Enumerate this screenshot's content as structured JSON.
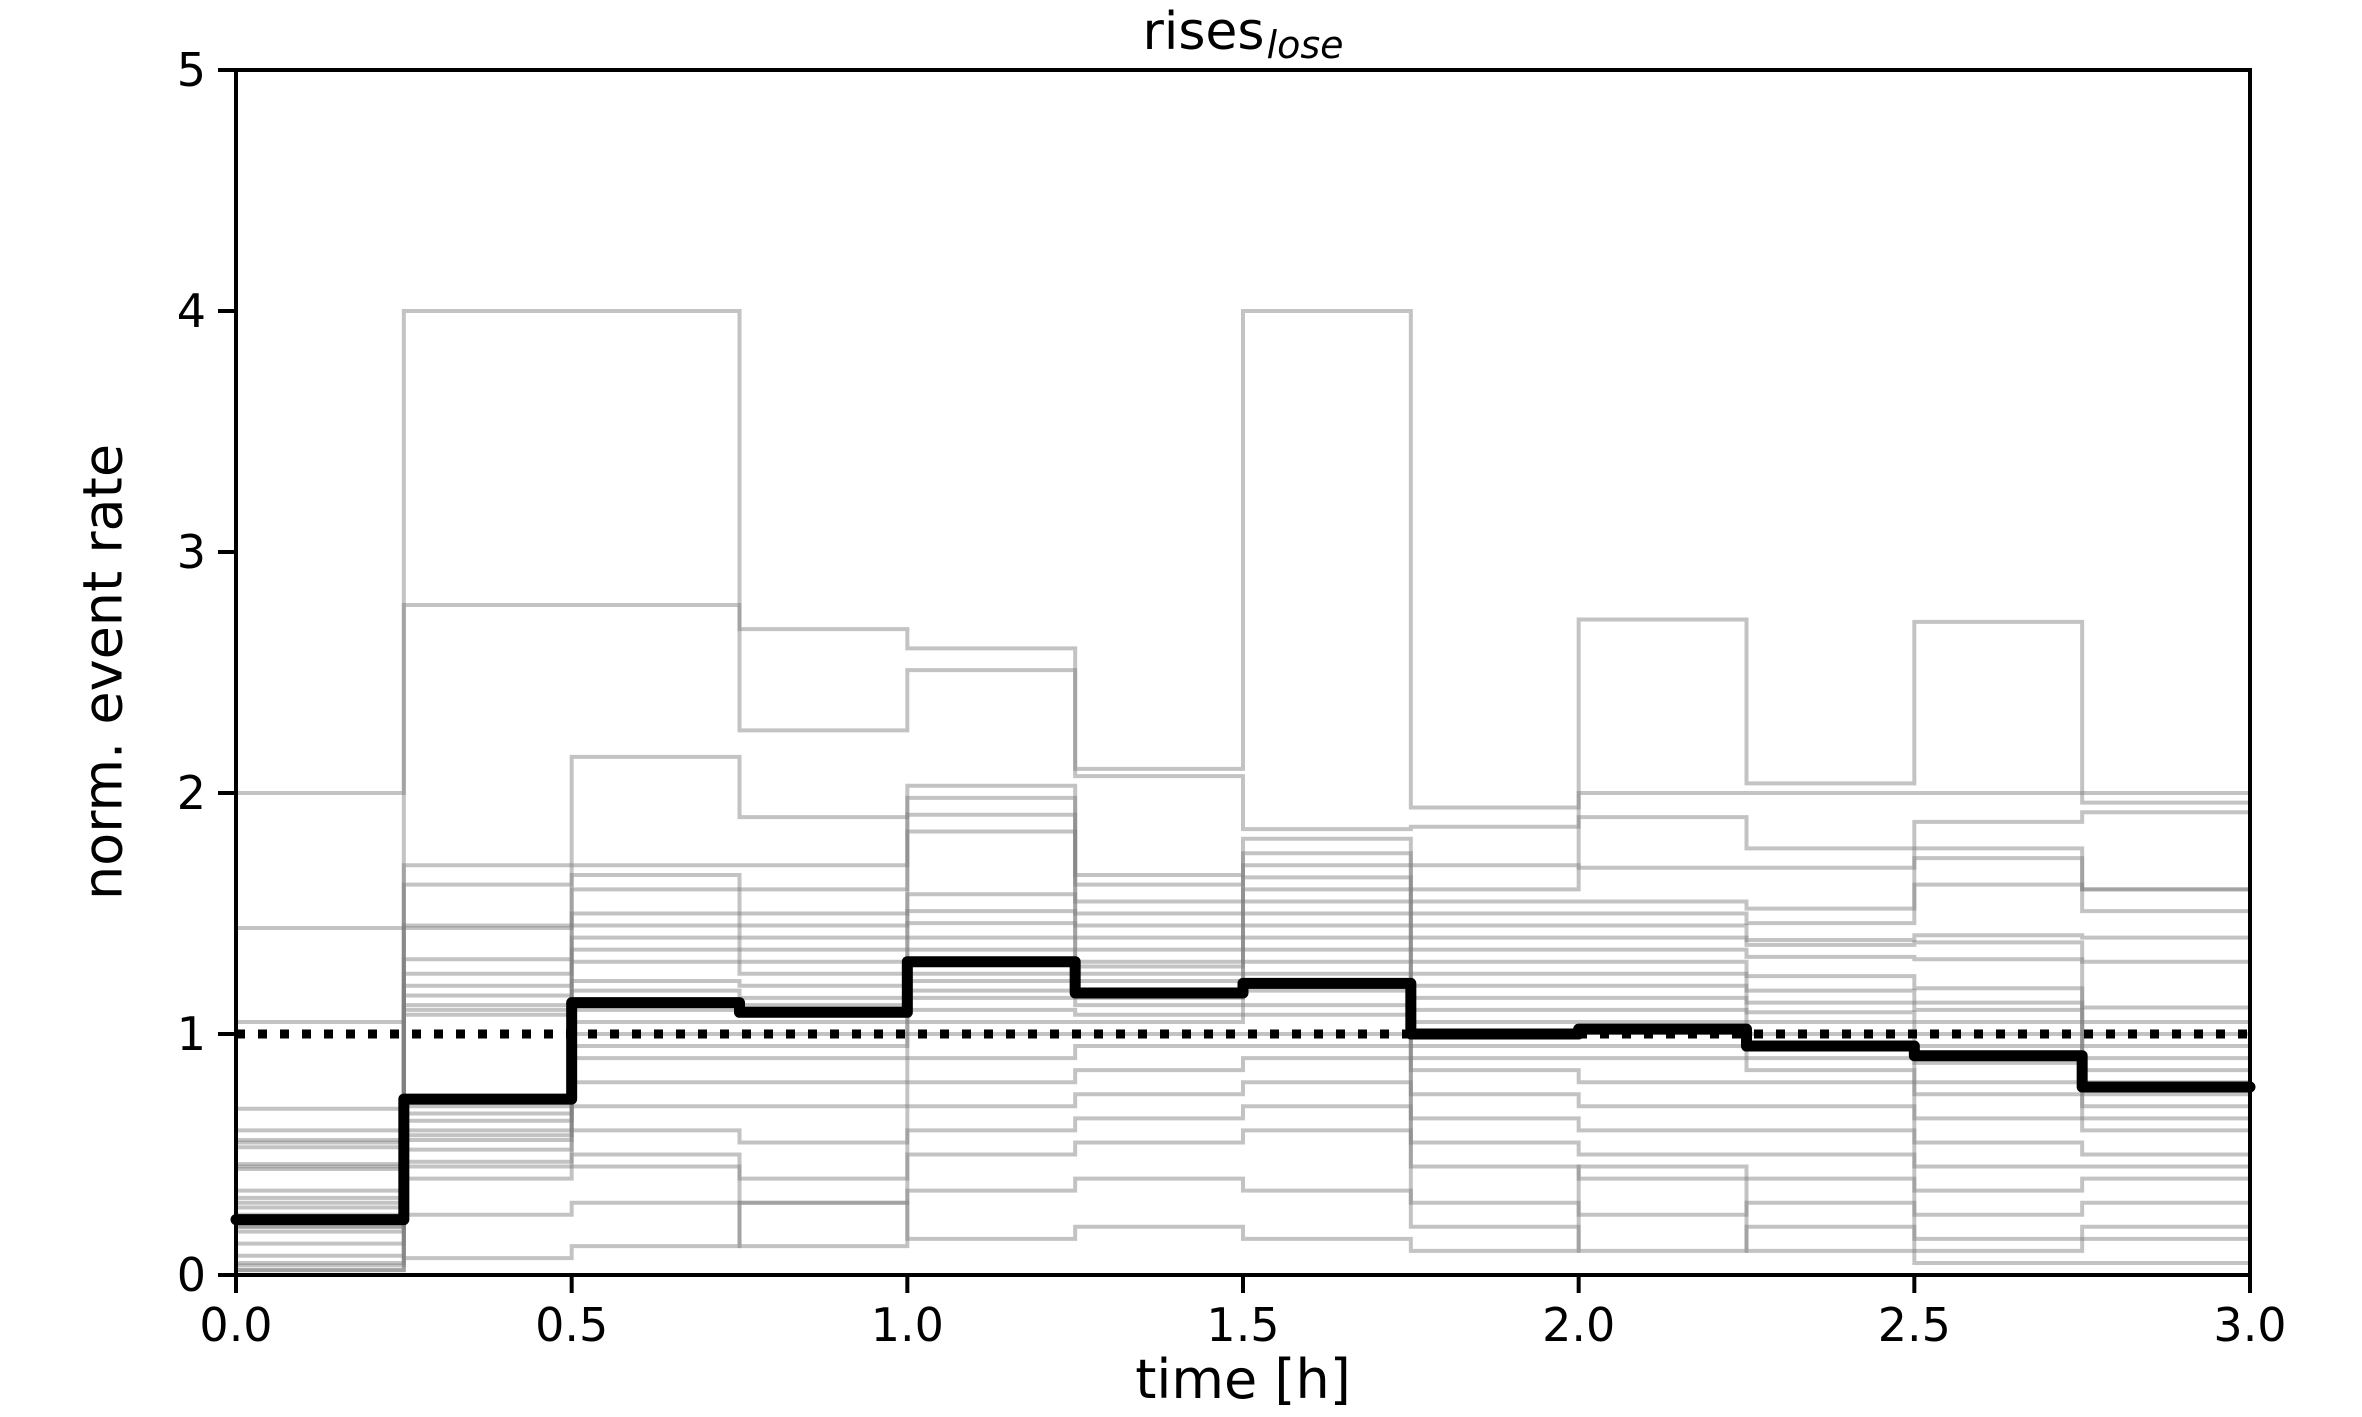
{
  "figure": {
    "title_main": "rises",
    "title_sub": "lose",
    "xlabel": "time [h]",
    "ylabel": "norm. event rate"
  },
  "chart_data": {
    "type": "line",
    "subtype": "step-post",
    "title": "rises_lose",
    "xlabel": "time [h]",
    "ylabel": "norm. event rate",
    "xlim": [
      0.0,
      3.0
    ],
    "ylim": [
      0,
      5
    ],
    "grid": false,
    "legend": null,
    "x_tick_values": [
      0.0,
      0.5,
      1.0,
      1.5,
      2.0,
      2.5,
      3.0
    ],
    "x_tick_labels": [
      "0.0",
      "0.5",
      "1.0",
      "1.5",
      "2.0",
      "2.5",
      "3.0"
    ],
    "y_tick_values": [
      0,
      1,
      2,
      3,
      4,
      5
    ],
    "y_tick_labels": [
      "0",
      "1",
      "2",
      "3",
      "4",
      "5"
    ],
    "bin_width_h": 0.25,
    "bin_edges": [
      0.0,
      0.25,
      0.5,
      0.75,
      1.0,
      1.25,
      1.5,
      1.75,
      2.0,
      2.25,
      2.5,
      2.75,
      3.0
    ],
    "reference_line": {
      "y": 1.0,
      "style": "dotted",
      "color": "#000000"
    },
    "mean_series": {
      "name": "mean-normalized-event-rate",
      "color": "#000000",
      "values": [
        0.23,
        0.73,
        1.13,
        1.09,
        1.3,
        1.17,
        1.21,
        1.0,
        1.02,
        0.95,
        0.91,
        0.78
      ]
    },
    "individual_traces": {
      "name": "per-subject-normalized-event-rate (values estimated from pixels)",
      "color": "#808080",
      "opacity": 0.47,
      "values": [
        [
          2.0,
          4.0,
          4.0,
          2.68,
          2.6,
          2.1,
          4.0,
          1.94,
          2.72,
          2.04,
          2.71,
          1.96
        ],
        [
          1.44,
          2.78,
          2.78,
          2.26,
          2.51,
          2.07,
          1.85,
          1.86,
          2.0,
          2.0,
          2.0,
          2.0
        ],
        [
          0.69,
          1.7,
          2.15,
          1.9,
          2.03,
          1.66,
          1.81,
          1.7,
          1.69,
          1.69,
          1.88,
          1.92
        ],
        [
          0.6,
          1.62,
          1.7,
          1.7,
          1.98,
          1.62,
          1.75,
          1.6,
          1.9,
          1.77,
          1.77,
          1.6
        ],
        [
          0.56,
          1.45,
          1.66,
          1.6,
          1.91,
          1.55,
          1.7,
          1.55,
          1.55,
          1.52,
          1.73,
          1.6
        ],
        [
          0.55,
          1.44,
          1.6,
          1.5,
          1.84,
          1.5,
          1.65,
          1.5,
          1.5,
          1.46,
          1.62,
          1.51
        ],
        [
          0.53,
          1.31,
          1.5,
          1.45,
          1.58,
          1.45,
          1.6,
          1.45,
          1.45,
          1.39,
          1.41,
          1.4
        ],
        [
          0.46,
          1.25,
          1.45,
          1.4,
          1.51,
          1.4,
          1.55,
          1.4,
          1.4,
          1.37,
          1.38,
          1.3
        ],
        [
          0.45,
          1.2,
          1.4,
          1.35,
          1.46,
          1.35,
          1.5,
          1.35,
          1.35,
          1.32,
          1.31,
          1.11
        ],
        [
          0.44,
          1.16,
          1.35,
          1.3,
          1.4,
          1.3,
          1.45,
          1.3,
          1.3,
          1.24,
          1.19,
          1.05
        ],
        [
          1.05,
          1.12,
          1.3,
          1.25,
          1.35,
          1.28,
          1.4,
          1.25,
          1.25,
          1.18,
          1.13,
          1.0
        ],
        [
          0.35,
          1.1,
          1.22,
          1.2,
          1.3,
          1.25,
          1.35,
          1.2,
          1.2,
          1.13,
          1.1,
          0.95
        ],
        [
          0.32,
          1.08,
          1.18,
          1.15,
          1.25,
          1.22,
          1.3,
          1.15,
          1.15,
          1.09,
          1.05,
          0.9
        ],
        [
          0.3,
          0.73,
          1.12,
          1.12,
          1.22,
          1.18,
          1.25,
          1.1,
          1.1,
          1.05,
          1.0,
          0.85
        ],
        [
          0.28,
          0.7,
          1.1,
          1.1,
          1.18,
          1.15,
          1.22,
          1.05,
          1.05,
          1.0,
          0.95,
          0.8
        ],
        [
          0.25,
          0.67,
          1.05,
          1.05,
          1.15,
          1.12,
          1.18,
          1.0,
          1.02,
          0.95,
          0.88,
          0.75
        ],
        [
          0.22,
          0.64,
          1.0,
          1.0,
          1.1,
          1.08,
          1.12,
          0.95,
          0.95,
          0.9,
          0.8,
          0.7
        ],
        [
          0.2,
          0.6,
          0.95,
          0.95,
          1.05,
          1.05,
          1.08,
          0.9,
          0.9,
          0.85,
          0.75,
          0.65
        ],
        [
          0.2,
          0.58,
          0.9,
          0.9,
          1.0,
          1.0,
          1.0,
          0.85,
          0.8,
          0.8,
          0.65,
          0.6
        ],
        [
          0.18,
          0.56,
          0.8,
          0.8,
          0.9,
          0.95,
          0.95,
          0.75,
          0.7,
          0.7,
          0.55,
          0.5
        ],
        [
          0.13,
          0.52,
          0.7,
          0.7,
          0.8,
          0.85,
          0.9,
          0.65,
          0.6,
          0.6,
          0.45,
          0.45
        ],
        [
          0.08,
          0.47,
          0.6,
          0.55,
          0.7,
          0.75,
          0.8,
          0.55,
          0.5,
          0.5,
          0.35,
          0.4
        ],
        [
          0.04,
          0.45,
          0.5,
          0.4,
          0.6,
          0.65,
          0.7,
          0.45,
          0.4,
          0.4,
          0.25,
          0.3
        ],
        [
          0.02,
          0.4,
          0.45,
          0.3,
          0.5,
          0.55,
          0.6,
          0.3,
          0.25,
          0.3,
          0.15,
          0.2
        ],
        [
          0.02,
          0.25,
          0.3,
          0.12,
          0.35,
          0.4,
          0.35,
          0.2,
          0.1,
          0.2,
          0.1,
          0.15
        ],
        [
          0.05,
          0.07,
          0.12,
          0.3,
          0.15,
          0.2,
          0.15,
          0.1,
          0.45,
          0.1,
          0.05,
          0.05
        ]
      ]
    },
    "colors": {
      "mean": "#000000",
      "traces": "#808080",
      "reference": "#000000",
      "spines": "#000000",
      "background": "#ffffff"
    }
  }
}
